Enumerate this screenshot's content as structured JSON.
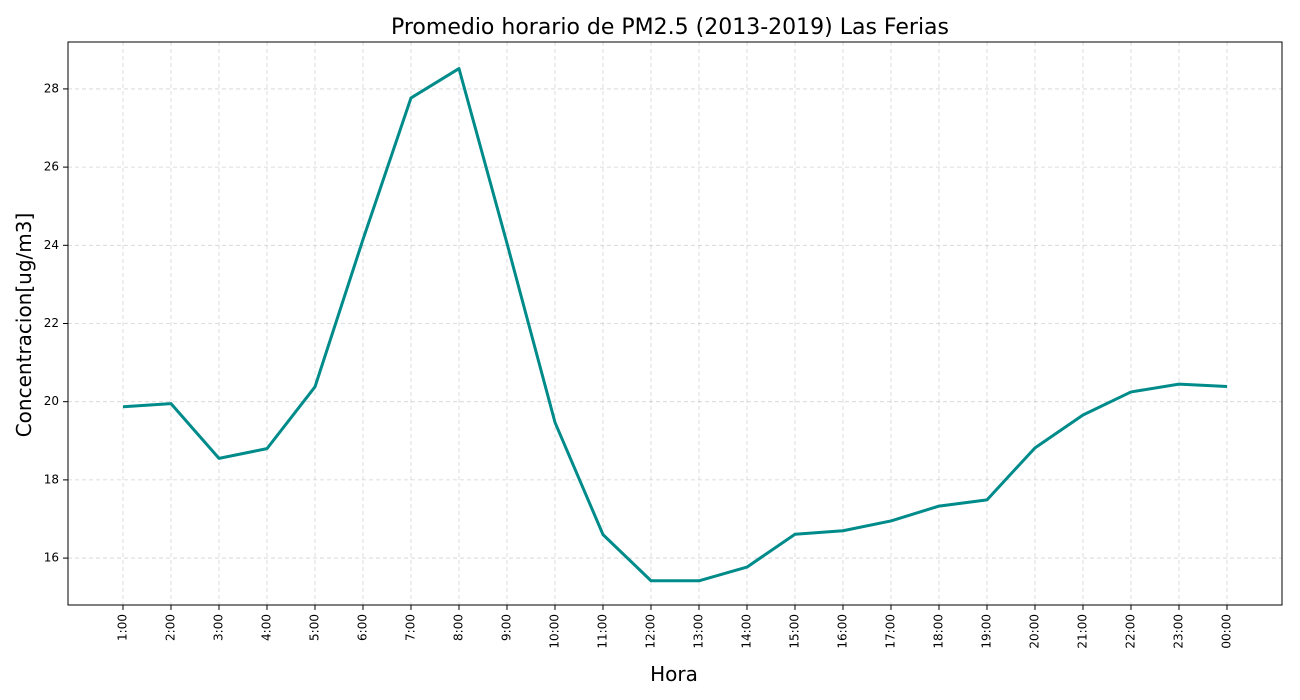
{
  "chart_data": {
    "type": "line",
    "title": "Promedio horario de PM2.5 (2013-2019) Las Ferias",
    "xlabel": "Hora",
    "ylabel": "Concentracion[ug/m3]",
    "categories": [
      "1:00",
      "2:00",
      "3:00",
      "4:00",
      "5:00",
      "6:00",
      "7:00",
      "8:00",
      "9:00",
      "10:00",
      "11:00",
      "12:00",
      "13:00",
      "14:00",
      "15:00",
      "16:00",
      "17:00",
      "18:00",
      "19:00",
      "20:00",
      "21:00",
      "22:00",
      "23:00",
      "00:00"
    ],
    "series": [
      {
        "color": "#008b8b",
        "values": [
          19.87,
          19.95,
          18.55,
          18.8,
          20.38,
          24.15,
          27.77,
          28.52,
          24.05,
          19.47,
          16.6,
          15.42,
          15.42,
          15.77,
          16.61,
          16.7,
          16.95,
          17.33,
          17.49,
          18.82,
          19.66,
          20.25,
          20.45,
          20.39
        ]
      }
    ],
    "yticks": [
      16,
      18,
      20,
      22,
      24,
      26,
      28
    ],
    "ylim": [
      14.8,
      29.2
    ],
    "grid": true
  }
}
